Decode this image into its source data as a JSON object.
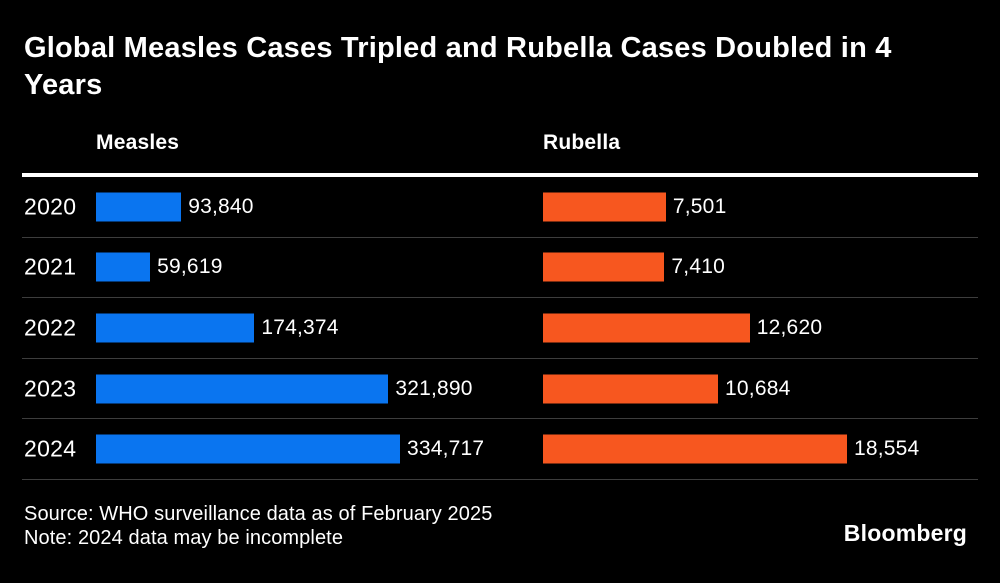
{
  "title": "Global Measles Cases Tripled and Rubella Cases Doubled in 4 Years",
  "column_headers": {
    "measles": "Measles",
    "rubella": "Rubella"
  },
  "chart_data": {
    "type": "bar",
    "orientation": "horizontal",
    "categories": [
      "2020",
      "2021",
      "2022",
      "2023",
      "2024"
    ],
    "series": [
      {
        "name": "Measles",
        "color": "#0a75f0",
        "values": [
          93840,
          59619,
          174374,
          321890,
          334717
        ],
        "labels": [
          "93,840",
          "59,619",
          "174,374",
          "321,890",
          "334,717"
        ]
      },
      {
        "name": "Rubella",
        "color": "#f7571f",
        "values": [
          7501,
          7410,
          12620,
          10684,
          18554
        ],
        "labels": [
          "7,501",
          "7,410",
          "12,620",
          "10,684",
          "18,554"
        ]
      }
    ],
    "value_labels_shown": true,
    "scaling": "each series scaled independently to its own maximum",
    "gridlines": "horizontal row dividers only",
    "legend_position": "column headers above chart"
  },
  "footer": {
    "source": "Source: WHO surveillance data as of February 2025",
    "note": "Note: 2024 data may be incomplete",
    "brand": "Bloomberg"
  },
  "colors": {
    "background": "#000000",
    "text": "#ffffff",
    "measles_bar": "#0a75f0",
    "rubella_bar": "#f7571f",
    "header_rule": "#ffffff",
    "row_divider": "#3d3d3d"
  }
}
